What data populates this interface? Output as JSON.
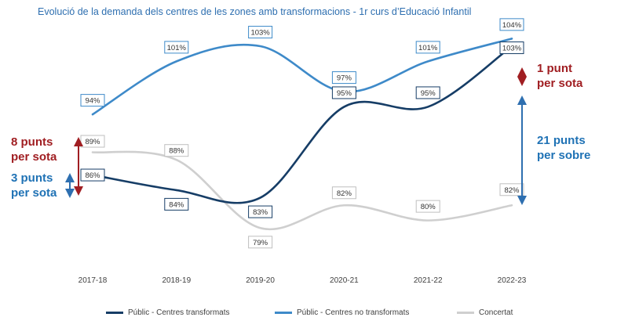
{
  "chart_data": {
    "type": "line",
    "title": "Evolució de la demanda dels centres de les zones amb transformacions - 1r curs d’Educació Infantil",
    "categories": [
      "2017-18",
      "2018-19",
      "2019-20",
      "2020-21",
      "2021-22",
      "2022-23"
    ],
    "series": [
      {
        "name": "Públic - Centres transformats",
        "color": "#163d66",
        "values": [
          86,
          84,
          83,
          95,
          95,
          103
        ],
        "labels": [
          "86%",
          "84%",
          "83%",
          "95%",
          "95%",
          "103%"
        ]
      },
      {
        "name": "Públic - Centres no transformats",
        "color": "#3e8ac9",
        "values": [
          94,
          101,
          103,
          97,
          101,
          104
        ],
        "labels": [
          "94%",
          "101%",
          "103%",
          "97%",
          "101%",
          "104%"
        ]
      },
      {
        "name": "Concertat",
        "color": "#cfcfcf",
        "values": [
          89,
          88,
          79,
          82,
          80,
          82
        ],
        "labels": [
          "89%",
          "88%",
          "79%",
          "82%",
          "80%",
          "82%"
        ]
      }
    ],
    "ylim": [
      75,
      106
    ],
    "grid": false,
    "legend_position": "bottom",
    "annotations": [
      {
        "lines": [
          "8 punts",
          "per sota"
        ],
        "color": "#a01e22"
      },
      {
        "lines": [
          "3 punts",
          "per sota"
        ],
        "color": "#1f72b5"
      },
      {
        "lines": [
          "1 punt",
          "per sota"
        ],
        "color": "#a01e22"
      },
      {
        "lines": [
          "21 punts",
          "per sobre"
        ],
        "color": "#1f72b5"
      }
    ]
  }
}
